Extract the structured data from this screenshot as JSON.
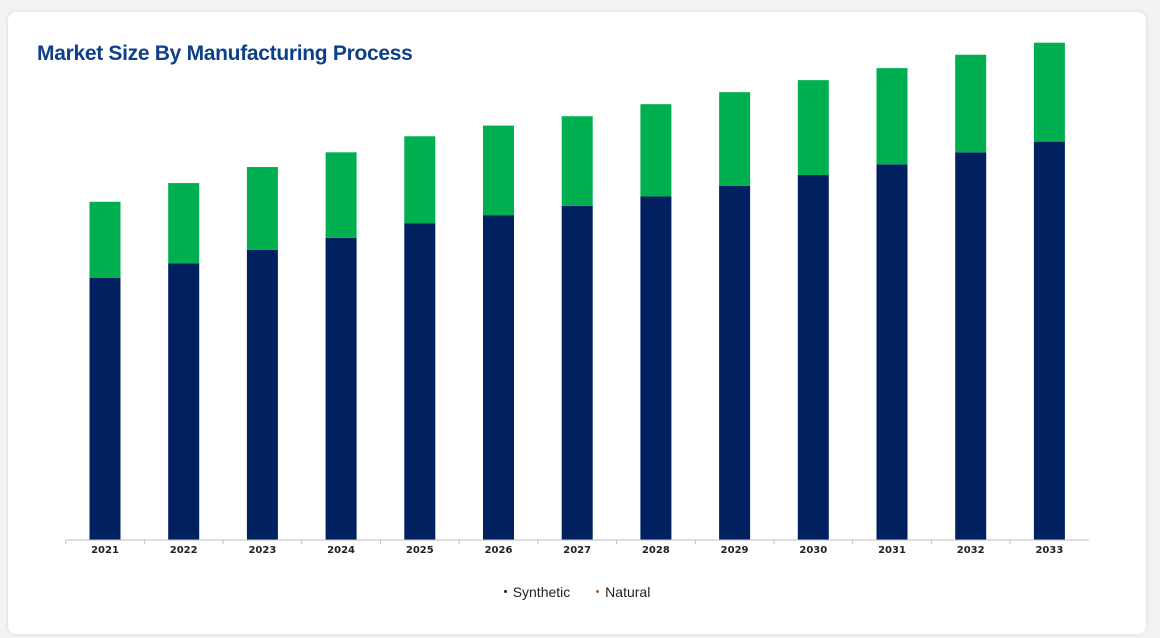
{
  "title": "Market Size By Manufacturing Process",
  "colors": {
    "synthetic": "#002060",
    "natural": "#00b050",
    "title": "#0d3f8a"
  },
  "legend": [
    {
      "label": "Synthetic",
      "color": "#002060"
    },
    {
      "label": "Natural",
      "color": "#c55a11"
    }
  ],
  "chart_data": {
    "type": "bar",
    "stacked": true,
    "title": "Market Size By Manufacturing Process",
    "xlabel": "",
    "ylabel": "",
    "grid": false,
    "legend_position": "bottom-center",
    "ylim": [
      0,
      380
    ],
    "categories": [
      "2021",
      "2022",
      "2023",
      "2024",
      "2025",
      "2026",
      "2027",
      "2028",
      "2029",
      "2030",
      "2031",
      "2032",
      "2033"
    ],
    "series": [
      {
        "name": "Synthetic",
        "values": [
          196,
          207,
          217,
          226,
          237,
          243,
          250,
          257,
          265,
          273,
          281,
          290,
          298
        ]
      },
      {
        "name": "Natural",
        "values": [
          57,
          60,
          62,
          64,
          65,
          67,
          67,
          69,
          70,
          71,
          72,
          73,
          74
        ]
      }
    ]
  }
}
